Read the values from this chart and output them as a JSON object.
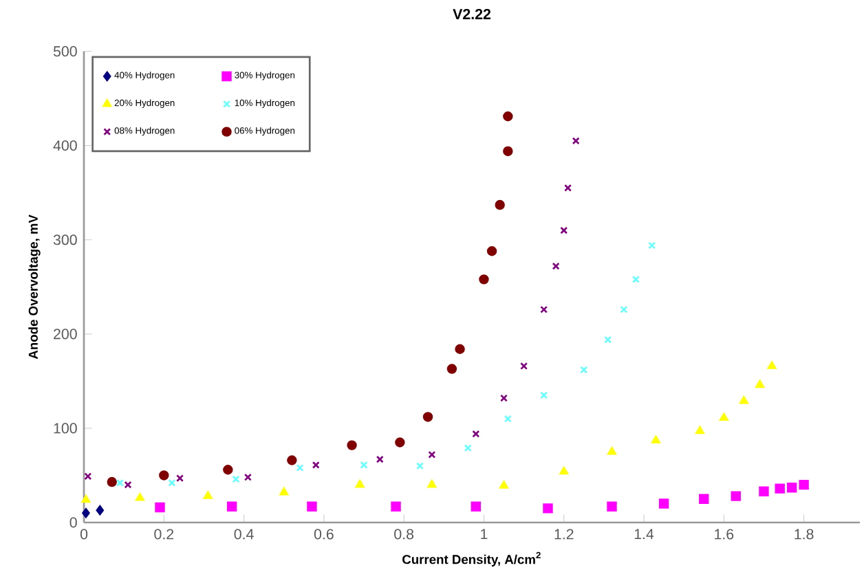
{
  "chart_data": {
    "type": "scatter",
    "title": "V2.22",
    "xlabel": "Current Density, A/cm$^{2}$",
    "ylabel": "Anode Overvoltage, mV",
    "xlim": [
      0,
      1.94
    ],
    "ylim": [
      0,
      500
    ],
    "xticks": [
      0,
      0.2,
      0.4,
      0.6,
      0.8,
      1,
      1.2,
      1.4,
      1.6,
      1.8
    ],
    "yticks": [
      0,
      100,
      200,
      300,
      400,
      500
    ],
    "grid": false,
    "legend": "top left",
    "series": [
      {
        "name": "40% Hydrogen",
        "color": "#000080",
        "marker": "diamond",
        "x": [
          0.005,
          0.04
        ],
        "values": [
          10,
          13
        ]
      },
      {
        "name": "30% Hydrogen",
        "color": "#ff00ff",
        "marker": "square",
        "x": [
          0.19,
          0.37,
          0.57,
          0.78,
          0.98,
          1.16,
          1.32,
          1.45,
          1.55,
          1.63,
          1.7,
          1.74,
          1.77,
          1.8
        ],
        "values": [
          16,
          17,
          17,
          17,
          17,
          15,
          17,
          20,
          25,
          28,
          33,
          36,
          37,
          40
        ]
      },
      {
        "name": "20% Hydrogen",
        "color": "#ffff00",
        "marker": "triangle",
        "x": [
          0.005,
          0.14,
          0.31,
          0.5,
          0.69,
          0.87,
          1.05,
          1.2,
          1.32,
          1.43,
          1.54,
          1.6,
          1.65,
          1.69,
          1.72
        ],
        "values": [
          24,
          26,
          28,
          32,
          40,
          40,
          39,
          54,
          75,
          87,
          97,
          111,
          129,
          146,
          166
        ]
      },
      {
        "name": "10% Hydrogen",
        "color": "#66ffff",
        "marker": "cross",
        "x": [
          0.09,
          0.22,
          0.38,
          0.54,
          0.7,
          0.84,
          0.96,
          1.06,
          1.15,
          1.25,
          1.31,
          1.35,
          1.38,
          1.42
        ],
        "values": [
          42,
          42,
          46,
          58,
          61,
          60,
          79,
          110,
          135,
          162,
          194,
          226,
          258,
          294
        ]
      },
      {
        "name": "08% Hydrogen",
        "color": "#800080",
        "marker": "cross",
        "x": [
          0.01,
          0.11,
          0.24,
          0.41,
          0.58,
          0.74,
          0.87,
          0.98,
          1.05,
          1.1,
          1.15,
          1.18,
          1.2,
          1.21,
          1.23
        ],
        "values": [
          49,
          40,
          47,
          48,
          61,
          67,
          72,
          94,
          132,
          166,
          226,
          272,
          310,
          355,
          405
        ]
      },
      {
        "name": "06% Hydrogen",
        "color": "#800000",
        "marker": "circle",
        "x": [
          0.07,
          0.2,
          0.36,
          0.52,
          0.67,
          0.79,
          0.86,
          0.92,
          0.94,
          1.0,
          1.02,
          1.04,
          1.06,
          1.06
        ],
        "values": [
          43,
          50,
          56,
          66,
          82,
          85,
          112,
          163,
          184,
          258,
          288,
          337,
          394,
          431
        ]
      }
    ]
  }
}
